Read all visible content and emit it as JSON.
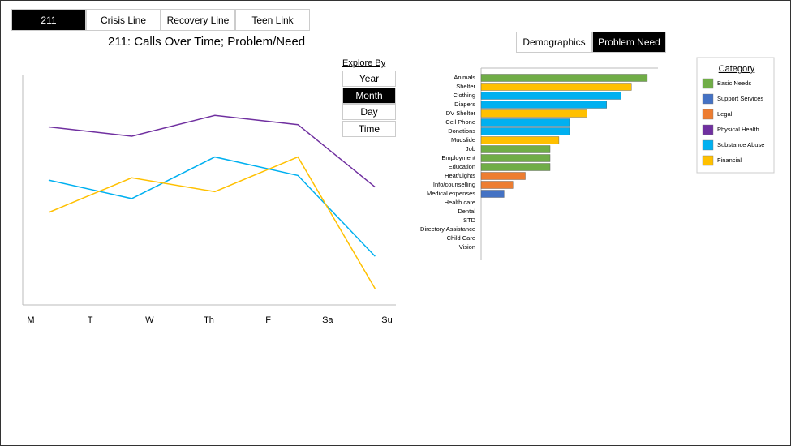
{
  "tabs": [
    {
      "label": "211",
      "active": true
    },
    {
      "label": "Crisis Line",
      "active": false
    },
    {
      "label": "Recovery Line",
      "active": false
    },
    {
      "label": "Teen Link",
      "active": false
    }
  ],
  "heading": "211: Calls Over Time; Problem/Need",
  "explore": {
    "title": "Explore By",
    "options": [
      {
        "label": "Year",
        "active": false
      },
      {
        "label": "Month",
        "active": true
      },
      {
        "label": "Day",
        "active": false
      },
      {
        "label": "Time",
        "active": false
      }
    ]
  },
  "view_toggle": [
    {
      "label": "Demographics",
      "active": false
    },
    {
      "label": "Problem Need",
      "active": true
    }
  ],
  "chart_data": [
    {
      "type": "line",
      "x": [
        0.3,
        1.7,
        3.1,
        4.5,
        5.8
      ],
      "xlim": [
        0,
        6
      ],
      "xticks": [
        {
          "value": 0,
          "label": "M"
        },
        {
          "value": 1,
          "label": "T"
        },
        {
          "value": 2,
          "label": "W"
        },
        {
          "value": 3,
          "label": "Th"
        },
        {
          "value": 4,
          "label": "F"
        },
        {
          "value": 5,
          "label": "Sa"
        },
        {
          "value": 6,
          "label": "Su"
        }
      ],
      "ylim": [
        0,
        100
      ],
      "series": [
        {
          "color": "#7030a0",
          "values": [
            77,
            73,
            82,
            78,
            51
          ]
        },
        {
          "color": "#00b0f0",
          "values": [
            54,
            46,
            64,
            56,
            21
          ]
        },
        {
          "color": "#ffc000",
          "values": [
            40,
            55,
            49,
            64,
            7
          ]
        }
      ]
    },
    {
      "type": "hbar",
      "categories": [
        "Animals",
        "Shelter",
        "Clothing",
        "Diapers",
        "DV Shelter",
        "Cell Phone",
        "Donations",
        "Mudslide",
        "Job",
        "Employment",
        "Education",
        "Heat/Lights",
        "Info/counselling",
        "Medical expenses",
        "Health care",
        "Dental",
        "STD",
        "Directory Assistance",
        "Child Care",
        "Vision"
      ],
      "values": [
        94,
        85,
        79,
        71,
        60,
        50,
        50,
        44,
        39,
        39,
        39,
        25,
        18,
        13,
        0,
        0,
        0,
        0,
        0,
        0
      ],
      "colors": [
        "#70ad47",
        "#ffc000",
        "#00b0f0",
        "#00b0f0",
        "#ffc000",
        "#00b0f0",
        "#00b0f0",
        "#ffc000",
        "#70ad47",
        "#70ad47",
        "#70ad47",
        "#ed7d31",
        "#ed7d31",
        "#4472c4",
        "#4472c4",
        "#4472c4",
        "#4472c4",
        "#4472c4",
        "#4472c4",
        "#4472c4"
      ],
      "xlim": [
        0,
        100
      ],
      "legend": {
        "title": "Category",
        "items": [
          {
            "name": "Basic Needs",
            "color": "#70ad47"
          },
          {
            "name": "Support Services",
            "color": "#4472c4"
          },
          {
            "name": "Legal",
            "color": "#ed7d31"
          },
          {
            "name": "Physical Health",
            "color": "#7030a0"
          },
          {
            "name": "Substance Abuse",
            "color": "#00b0f0"
          },
          {
            "name": "Financial",
            "color": "#ffc000"
          }
        ]
      }
    }
  ]
}
